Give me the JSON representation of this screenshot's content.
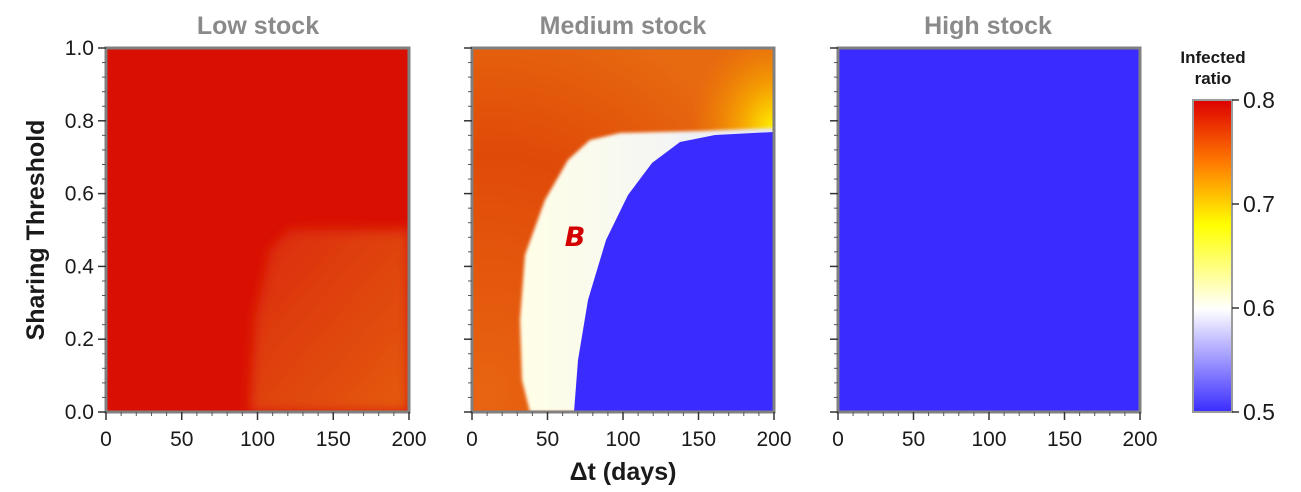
{
  "chart_data": [
    {
      "type": "heatmap",
      "title": "Low stock",
      "xlabel": "Δt (days)",
      "ylabel": "Sharing Threshold",
      "xlim": [
        0,
        200
      ],
      "ylim": [
        0.0,
        1.0
      ],
      "x_ticks": [
        "0",
        "50",
        "100",
        "150",
        "200"
      ],
      "y_ticks": [
        "0.0",
        "0.2",
        "0.4",
        "0.6",
        "0.8",
        "1.0"
      ],
      "regions": [
        {
          "description": "uniform high infection",
          "value": 0.785
        },
        {
          "x_range": [
            110,
            200
          ],
          "y_range": [
            0.0,
            0.5
          ],
          "value": 0.765
        }
      ]
    },
    {
      "type": "heatmap",
      "title": "Medium stock",
      "xlim": [
        0,
        200
      ],
      "ylim": [
        0.0,
        1.0
      ],
      "x_ticks": [
        "0",
        "50",
        "100",
        "150",
        "200"
      ],
      "regions": [
        {
          "description": "orange band for small Δt",
          "value": 0.765
        },
        {
          "description": "white band (annotated B)",
          "value": 0.62
        },
        {
          "description": "blue region, Δt > ~70 and threshold < ~0.77",
          "value": 0.5
        },
        {
          "description": "yellow corner near Δt = 200, threshold 0.8",
          "value": 0.7
        }
      ],
      "annotations": [
        {
          "text": "B",
          "x": 65,
          "y": 0.48,
          "color": "#d40000"
        }
      ]
    },
    {
      "type": "heatmap",
      "title": "High stock",
      "xlim": [
        0,
        200
      ],
      "ylim": [
        0.0,
        1.0
      ],
      "x_ticks": [
        "0",
        "50",
        "100",
        "150",
        "200"
      ],
      "regions": [
        {
          "description": "uniform low infection",
          "value": 0.5
        }
      ]
    }
  ],
  "colorbar": {
    "title_line1": "Infected",
    "title_line2": "ratio",
    "range": [
      0.5,
      0.8
    ],
    "ticks": [
      "0.8",
      "0.7",
      "0.6",
      "0.5"
    ],
    "colors": {
      "low": "#3a2cff",
      "white": "#ffffff",
      "yellow": "#ffff00",
      "orange": "#ff8c00",
      "high": "#dd0000"
    }
  },
  "colors": {
    "frame": "#808080",
    "panel_title": "#8a8a8a",
    "annotation": "#d40000"
  }
}
